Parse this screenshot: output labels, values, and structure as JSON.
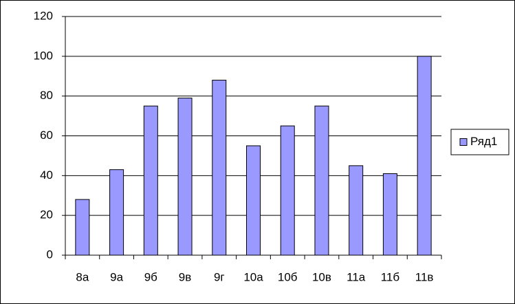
{
  "chart_data": {
    "type": "bar",
    "categories": [
      "8а",
      "9а",
      "9б",
      "9в",
      "9г",
      "10а",
      "10б",
      "10в",
      "11а",
      "11б",
      "11в"
    ],
    "series": [
      {
        "name": "Ряд1",
        "color": "#9999ff",
        "values": [
          28,
          43,
          75,
          79,
          88,
          55,
          65,
          75,
          45,
          41,
          100
        ]
      }
    ],
    "ylim": [
      0,
      120
    ],
    "yticks": [
      0,
      20,
      40,
      60,
      80,
      100,
      120
    ],
    "grid": true,
    "legend": "right"
  }
}
